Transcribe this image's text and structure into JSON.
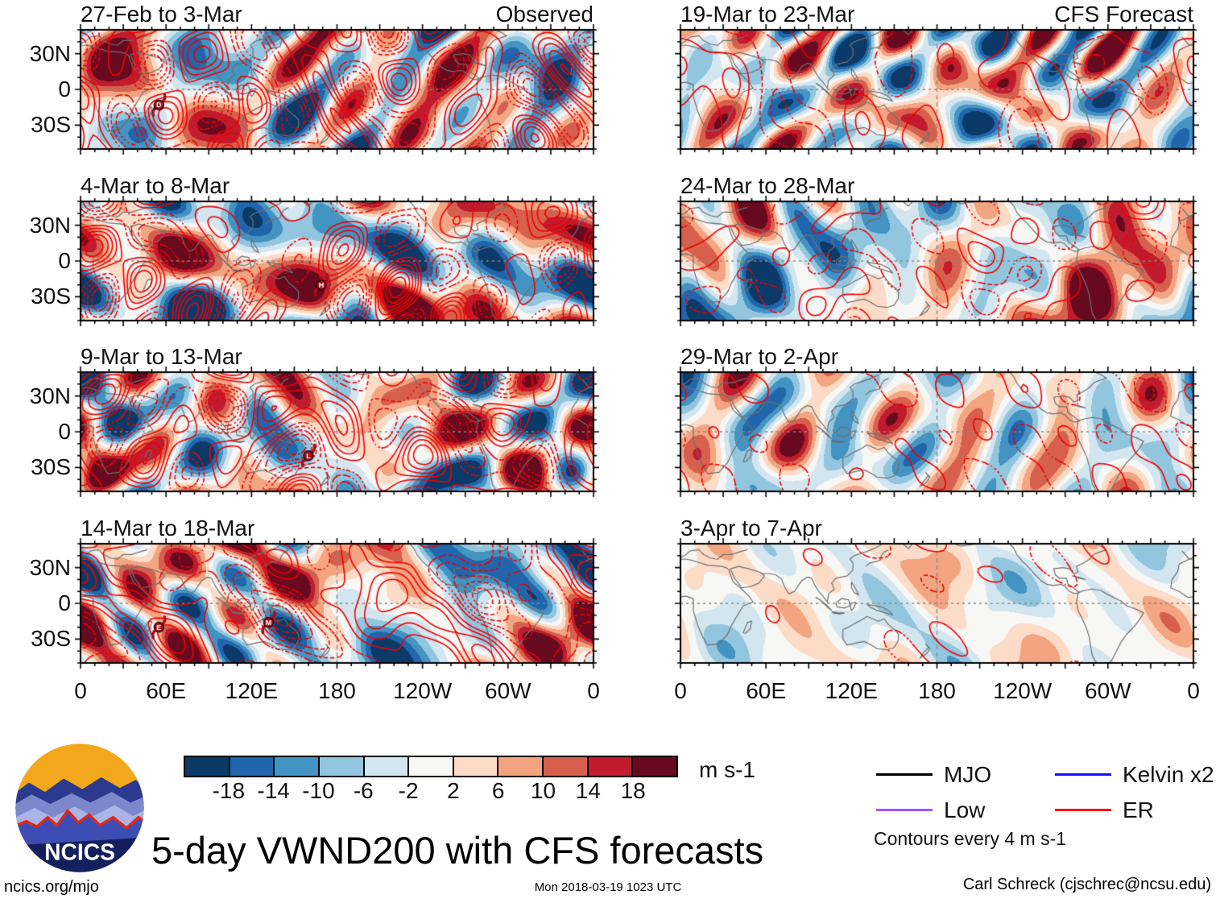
{
  "chart_data": {
    "type": "heatmap",
    "title": "5-day VWND200 with CFS forecasts",
    "variable": "VWND200",
    "units": "m s-1",
    "panels": [
      {
        "title": "27-Feb to 3-Mar",
        "corner_label": "Observed",
        "col": 0,
        "row": 0,
        "intensity": 1.0,
        "contour_intensity": 1.0,
        "cyclones": [
          {
            "label": "D",
            "lon": 55,
            "lat": -13
          }
        ]
      },
      {
        "title": "4-Mar to 8-Mar",
        "corner_label": "",
        "col": 0,
        "row": 1,
        "intensity": 1.0,
        "contour_intensity": 1.0,
        "cyclones": [
          {
            "label": "H",
            "lon": 169,
            "lat": -20
          }
        ]
      },
      {
        "title": "9-Mar to 13-Mar",
        "corner_label": "",
        "col": 0,
        "row": 2,
        "intensity": 1.0,
        "contour_intensity": 1.0,
        "cyclones": [
          {
            "label": "L",
            "lon": 160,
            "lat": -20
          }
        ]
      },
      {
        "title": "14-Mar to 18-Mar",
        "corner_label": "",
        "col": 0,
        "row": 3,
        "intensity": 0.95,
        "contour_intensity": 0.95,
        "cyclones": [
          {
            "label": "E",
            "lon": 55,
            "lat": -20
          },
          {
            "label": "M",
            "lon": 132,
            "lat": -16
          }
        ]
      },
      {
        "title": "19-Mar to 23-Mar",
        "corner_label": "CFS Forecast",
        "col": 1,
        "row": 0,
        "intensity": 0.9,
        "contour_intensity": 0.5,
        "cyclones": []
      },
      {
        "title": "24-Mar to 28-Mar",
        "corner_label": "",
        "col": 1,
        "row": 1,
        "intensity": 0.8,
        "contour_intensity": 0.45,
        "cyclones": []
      },
      {
        "title": "29-Mar to 2-Apr",
        "corner_label": "",
        "col": 1,
        "row": 2,
        "intensity": 0.55,
        "contour_intensity": 0.35,
        "cyclones": []
      },
      {
        "title": "3-Apr to 7-Apr",
        "corner_label": "",
        "col": 1,
        "row": 3,
        "intensity": 0.38,
        "contour_intensity": 0.28,
        "cyclones": []
      }
    ],
    "x_ticks": [
      "0",
      "60E",
      "120E",
      "180",
      "120W",
      "60W",
      "0"
    ],
    "x_tick_lons": [
      0,
      60,
      120,
      180,
      240,
      300,
      360
    ],
    "y_ticks": [
      "30N",
      "0",
      "30S"
    ],
    "y_tick_lats": [
      30,
      0,
      -30
    ],
    "lon_range": [
      0,
      360
    ],
    "lat_range": [
      -50,
      50
    ],
    "colorbar": {
      "levels": [
        -18,
        -14,
        -10,
        -6,
        -2,
        2,
        6,
        10,
        14,
        18
      ],
      "colors": [
        "#0c3a68",
        "#2166ac",
        "#4393c3",
        "#92c5de",
        "#d3e6f0",
        "#f7f7f5",
        "#fcdbc7",
        "#f3a481",
        "#d6604d",
        "#c01c2e",
        "#670a1f"
      ],
      "units": "m s-1"
    },
    "legend": {
      "items": [
        {
          "label": "MJO",
          "color": "#000000"
        },
        {
          "label": "Kelvin x2",
          "color": "#1414ff"
        },
        {
          "label": "Low",
          "color": "#ad55f2"
        },
        {
          "label": "ER",
          "color": "#ff0000"
        }
      ],
      "note": "Contours every 4 m s-1"
    },
    "contour_color": "#ee0000",
    "coast_color": "#6f6f6f",
    "cyclone_color": "#a50f15"
  },
  "footer": {
    "site": "ncics.org/mjo",
    "timestamp": "Mon 2018-03-19 1023 UTC",
    "credit": "Carl Schreck (cjschrec@ncsu.edu)",
    "logo_text": "NCICS"
  }
}
